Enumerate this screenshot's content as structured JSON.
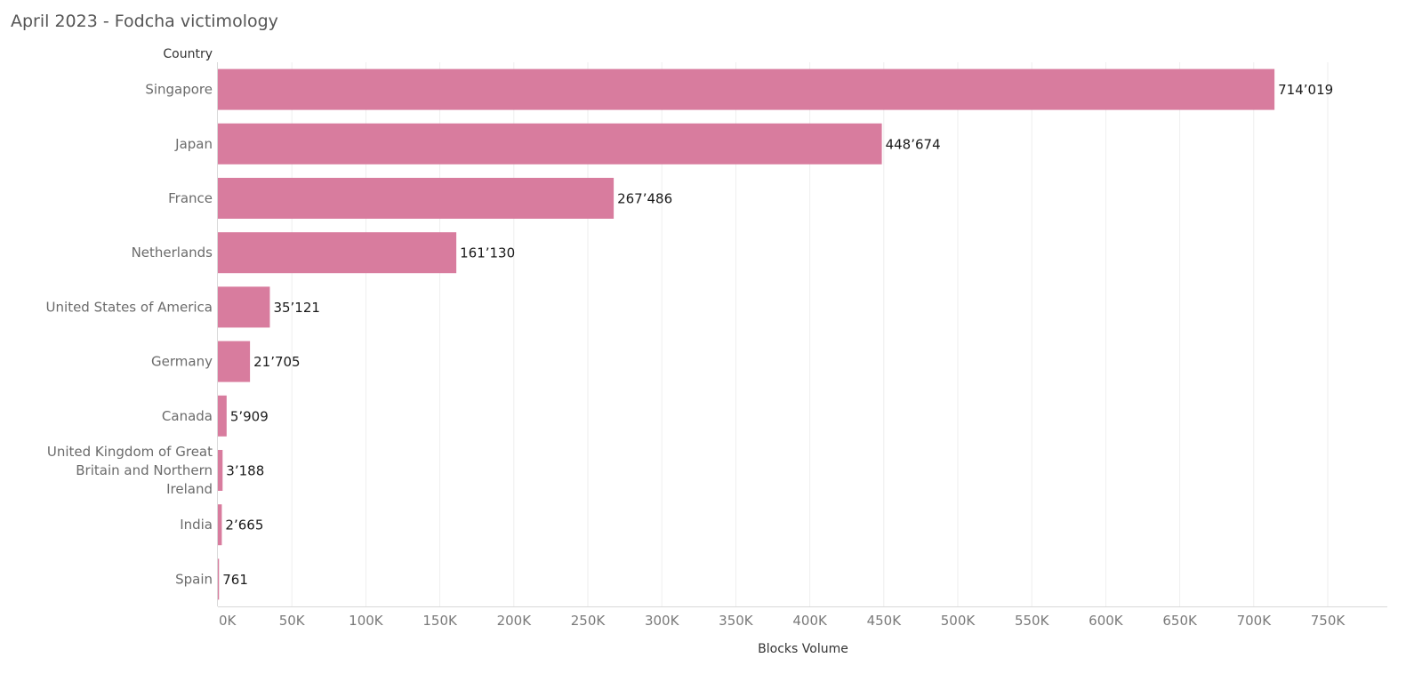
{
  "title": "April 2023 - Fodcha victimology",
  "chart_data": {
    "type": "bar",
    "orientation": "horizontal",
    "title": "April 2023 - Fodcha victimology",
    "ylabel": "Country",
    "xlabel": "Blocks Volume",
    "categories": [
      "Singapore",
      "Japan",
      "France",
      "Netherlands",
      "United States of America",
      "Germany",
      "Canada",
      "United Kingdom of Great Britain and Northern Ireland",
      "India",
      "Spain"
    ],
    "values": [
      714019,
      448674,
      267486,
      161130,
      35121,
      21705,
      5909,
      3188,
      2665,
      761
    ],
    "data_labels": [
      "714’019",
      "448’674",
      "267’486",
      "161’130",
      "35’121",
      "21’705",
      "5’909",
      "3’188",
      "2’665",
      "761"
    ],
    "xlim": [
      0,
      750000
    ],
    "x_ticks": [
      "0K",
      "50K",
      "100K",
      "150K",
      "200K",
      "250K",
      "300K",
      "350K",
      "400K",
      "450K",
      "500K",
      "550K",
      "600K",
      "650K",
      "700K",
      "750K"
    ],
    "grid": true,
    "bar_color": "#d87c9e"
  }
}
